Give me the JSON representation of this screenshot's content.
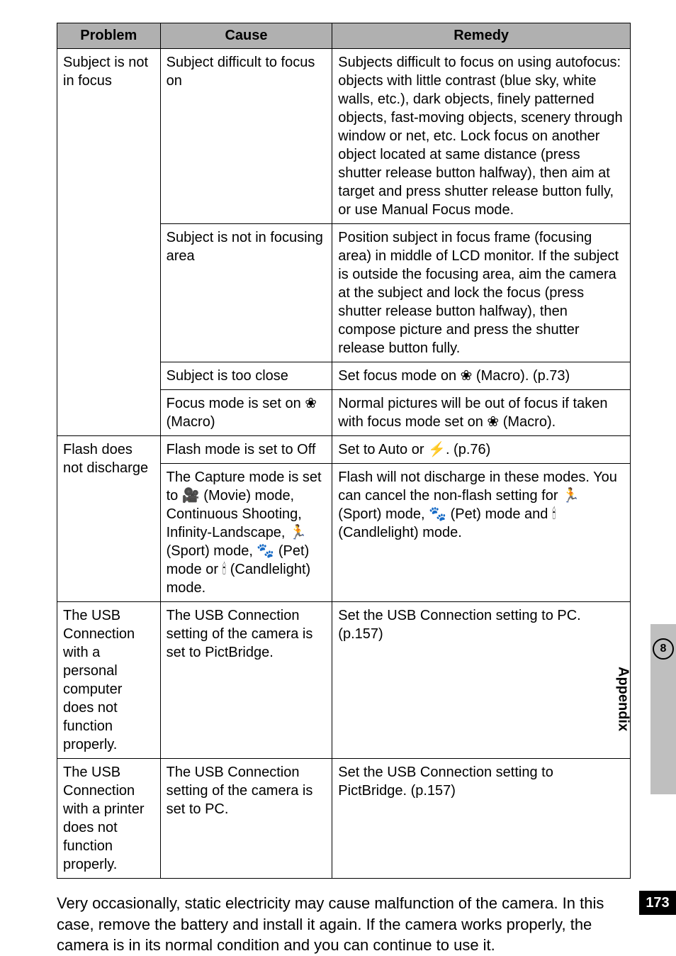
{
  "table": {
    "header_bg": "#b0b0b0",
    "border_color": "#000000",
    "text_color": "#000000",
    "font_size_pt": 15,
    "columns": [
      {
        "key": "problem",
        "label": "Problem",
        "width_pct": 18
      },
      {
        "key": "cause",
        "label": "Cause",
        "width_pct": 30
      },
      {
        "key": "remedy",
        "label": "Remedy",
        "width_pct": 52
      }
    ],
    "rows": [
      {
        "problem": "Subject is not in focus",
        "problem_rowspan": 4,
        "cause": "Subject difficult to focus on",
        "remedy": "Subjects difficult to focus on using autofocus: objects with little contrast (blue sky, white walls, etc.), dark objects, finely patterned objects, fast-moving objects, scenery through window or net, etc. Lock focus on another object located at same distance (press shutter release button halfway), then aim at target and press shutter release button fully, or use Manual Focus mode."
      },
      {
        "cause": "Subject is not in focusing area",
        "remedy": "Position subject in focus frame (focusing area) in middle of LCD monitor. If the subject is outside the focusing area, aim the camera at the subject and lock the focus (press shutter release button halfway), then compose picture and press the shutter release button fully."
      },
      {
        "cause": "Subject is too close",
        "remedy": "Set focus mode on ❀ (Macro). (p.73)"
      },
      {
        "cause": "Focus mode is set on ❀ (Macro)",
        "remedy": "Normal pictures will be out of focus if taken with focus mode set on ❀ (Macro)."
      },
      {
        "problem": "Flash does not discharge",
        "problem_rowspan": 2,
        "cause": "Flash mode is set to Off",
        "remedy": "Set to Auto or ⚡. (p.76)"
      },
      {
        "cause": "The Capture mode is set to 🎥 (Movie) mode, Continuous Shooting, Infinity-Landscape, 🏃 (Sport) mode, 🐾 (Pet) mode or 🕯 (Candlelight) mode.",
        "remedy": "Flash will not discharge in these modes. You can cancel the non-flash setting for 🏃 (Sport) mode, 🐾 (Pet) mode and 🕯 (Candlelight) mode."
      },
      {
        "problem": "The USB Connection with a personal computer does not function properly.",
        "problem_rowspan": 1,
        "cause": "The USB Connection setting of the camera is set to PictBridge.",
        "remedy": "Set the USB Connection setting to PC. (p.157)"
      },
      {
        "problem": "The USB Connection with a printer does not function properly.",
        "problem_rowspan": 1,
        "cause": "The USB Connection setting of the camera is set to PC.",
        "remedy": "Set the USB Connection setting to PictBridge. (p.157)"
      }
    ]
  },
  "paragraph": "Very occasionally, static electricity may cause malfunction of the camera. In this case, remove the battery and install it again. If the camera works properly, the camera is in its normal condition and you can continue to use it.",
  "side_tab": {
    "number": "8",
    "label": "Appendix",
    "bg": "#bfbfbf",
    "text_color": "#000000"
  },
  "page_number": "173",
  "page_number_style": {
    "bg": "#000000",
    "fg": "#ffffff"
  }
}
